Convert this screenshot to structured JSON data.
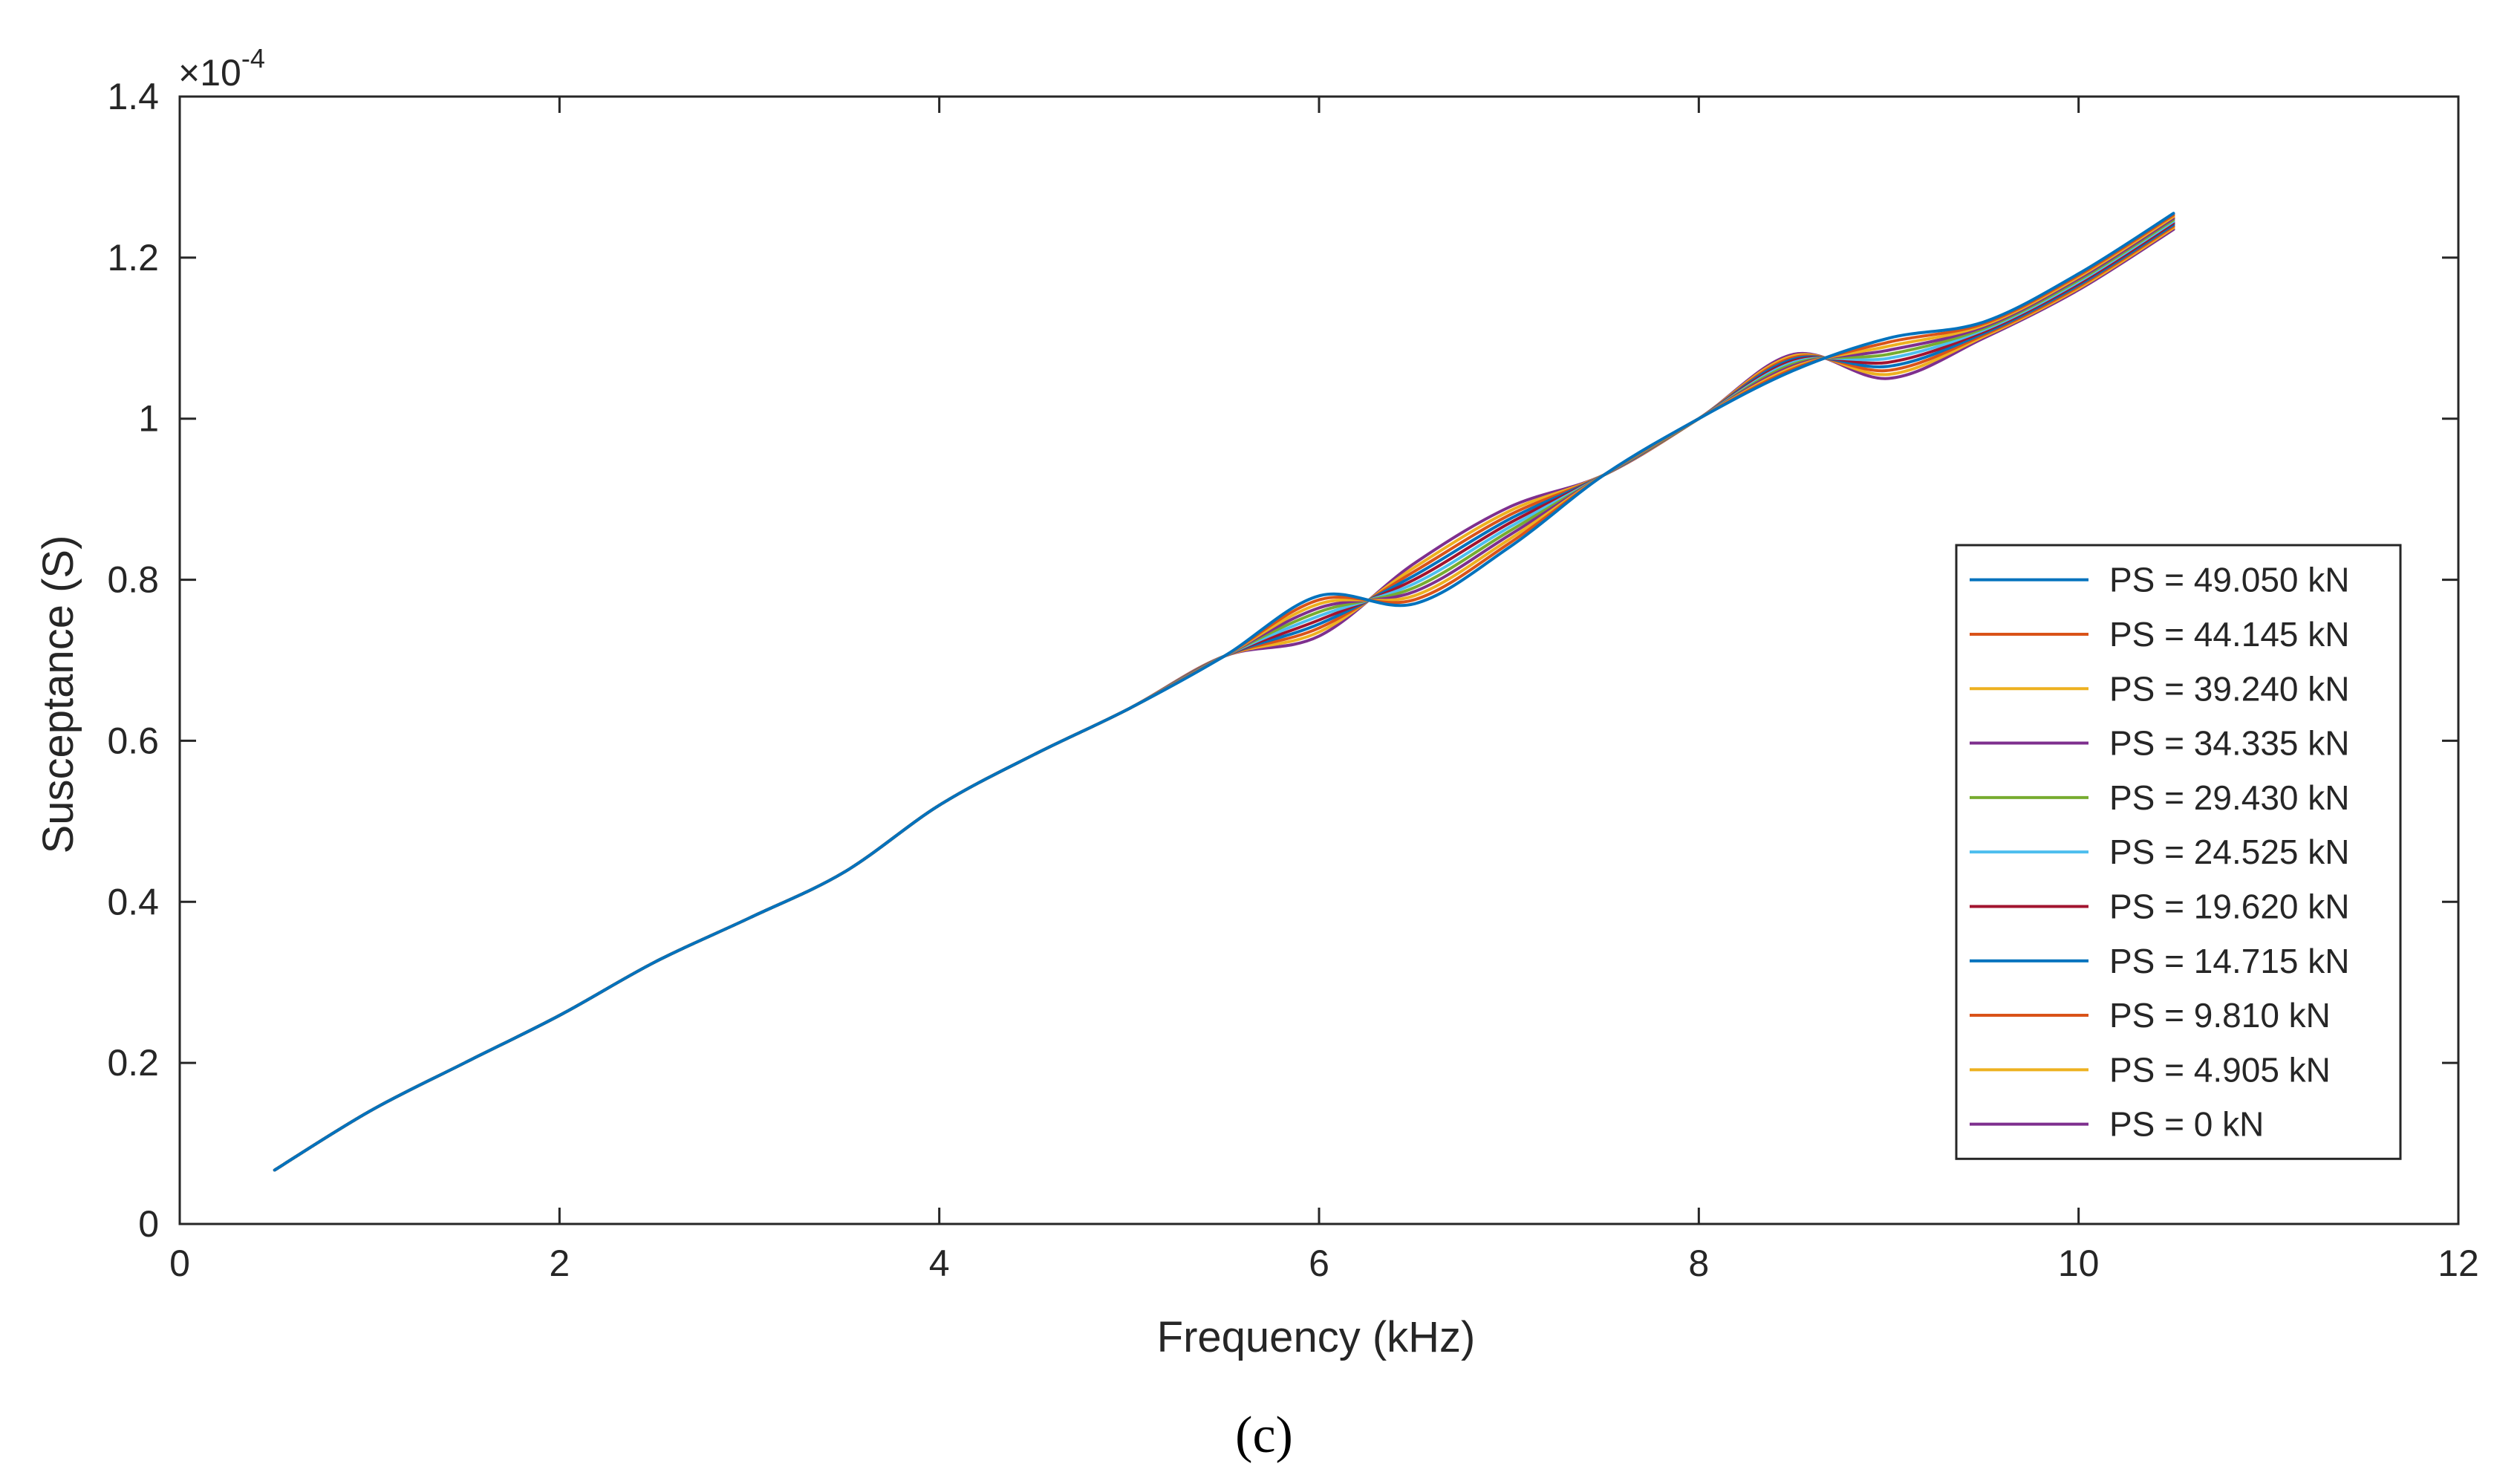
{
  "chart_data": {
    "type": "line",
    "title": "",
    "xlabel": "Frequency (kHz)",
    "ylabel": "Susceptance (S)",
    "y_scale_label": "×10",
    "y_scale_exponent": "-4",
    "panel_label": "(c)",
    "xlim": [
      0,
      12
    ],
    "ylim": [
      0,
      1.4
    ],
    "x_ticks": [
      0,
      2,
      4,
      6,
      8,
      10,
      12
    ],
    "y_ticks": [
      0,
      0.2,
      0.4,
      0.6,
      0.8,
      1,
      1.2,
      1.4
    ],
    "x_tick_labels": [
      "0",
      "2",
      "4",
      "6",
      "8",
      "10",
      "12"
    ],
    "y_tick_labels": [
      "0",
      "0.2",
      "0.4",
      "0.6",
      "0.8",
      "1",
      "1.2",
      "1.4"
    ],
    "grid": false,
    "legend_position": "right",
    "x": [
      0.5,
      1.0,
      1.5,
      2.0,
      2.5,
      3.0,
      3.5,
      4.0,
      4.5,
      5.0,
      5.5,
      6.0,
      6.5,
      7.0,
      7.5,
      8.0,
      8.5,
      9.0,
      9.5,
      10.0,
      10.5
    ],
    "resonances": {
      "description_hidden": "",
      "peak1_x": [
        6.2,
        6.11,
        6.02,
        5.93,
        5.84,
        5.75,
        5.66,
        5.57,
        5.48,
        5.39,
        5.3
      ],
      "peak2_x": [
        9.25,
        9.16,
        9.07,
        8.98,
        8.89,
        8.8,
        8.71,
        8.62,
        8.53,
        8.44,
        8.35
      ]
    },
    "series": [
      {
        "name": "PS = 49.050 kN",
        "color": "#0072BD",
        "values": [
          0.067,
          0.14,
          0.2,
          0.259,
          0.325,
          0.38,
          0.437,
          0.52,
          0.583,
          0.64,
          0.705,
          0.78,
          0.77,
          0.84,
          0.93,
          1.0,
          1.06,
          1.1,
          1.12,
          1.18,
          1.255
        ]
      },
      {
        "name": "PS = 44.145 kN",
        "color": "#D95319",
        "values": [
          0.067,
          0.14,
          0.2,
          0.259,
          0.325,
          0.38,
          0.437,
          0.52,
          0.583,
          0.64,
          0.705,
          0.775,
          0.775,
          0.845,
          0.93,
          1.0,
          1.062,
          1.095,
          1.118,
          1.178,
          1.253
        ]
      },
      {
        "name": "PS = 39.240 kN",
        "color": "#EDB120",
        "values": [
          0.067,
          0.14,
          0.2,
          0.259,
          0.325,
          0.38,
          0.437,
          0.52,
          0.583,
          0.64,
          0.705,
          0.77,
          0.78,
          0.85,
          0.93,
          1.0,
          1.064,
          1.09,
          1.116,
          1.176,
          1.251
        ]
      },
      {
        "name": "PS = 34.335 kN",
        "color": "#7E2F8E",
        "values": [
          0.067,
          0.14,
          0.2,
          0.259,
          0.325,
          0.38,
          0.437,
          0.52,
          0.583,
          0.64,
          0.705,
          0.765,
          0.785,
          0.855,
          0.93,
          1.0,
          1.066,
          1.085,
          1.114,
          1.174,
          1.249
        ]
      },
      {
        "name": "PS = 29.430 kN",
        "color": "#77AC30",
        "values": [
          0.067,
          0.14,
          0.2,
          0.259,
          0.325,
          0.38,
          0.437,
          0.52,
          0.583,
          0.64,
          0.705,
          0.76,
          0.79,
          0.86,
          0.93,
          1.0,
          1.068,
          1.08,
          1.112,
          1.172,
          1.247
        ]
      },
      {
        "name": "PS = 24.525 kN",
        "color": "#4DBEEE",
        "values": [
          0.067,
          0.14,
          0.2,
          0.259,
          0.325,
          0.38,
          0.437,
          0.52,
          0.583,
          0.64,
          0.705,
          0.755,
          0.795,
          0.865,
          0.93,
          1.0,
          1.07,
          1.075,
          1.11,
          1.17,
          1.245
        ]
      },
      {
        "name": "PS = 19.620 kN",
        "color": "#A2142F",
        "values": [
          0.067,
          0.14,
          0.2,
          0.259,
          0.325,
          0.38,
          0.437,
          0.52,
          0.583,
          0.64,
          0.705,
          0.75,
          0.8,
          0.87,
          0.93,
          1.0,
          1.072,
          1.07,
          1.108,
          1.168,
          1.243
        ]
      },
      {
        "name": "PS = 14.715 kN",
        "color": "#0072BD",
        "values": [
          0.067,
          0.14,
          0.2,
          0.259,
          0.325,
          0.38,
          0.437,
          0.52,
          0.583,
          0.64,
          0.705,
          0.745,
          0.805,
          0.875,
          0.93,
          1.0,
          1.074,
          1.065,
          1.106,
          1.166,
          1.241
        ]
      },
      {
        "name": "PS = 9.810 kN",
        "color": "#D95319",
        "values": [
          0.067,
          0.14,
          0.2,
          0.259,
          0.325,
          0.38,
          0.437,
          0.52,
          0.583,
          0.64,
          0.705,
          0.74,
          0.81,
          0.88,
          0.93,
          1.0,
          1.076,
          1.06,
          1.104,
          1.164,
          1.239
        ]
      },
      {
        "name": "PS = 4.905 kN",
        "color": "#EDB120",
        "values": [
          0.067,
          0.14,
          0.2,
          0.259,
          0.325,
          0.38,
          0.437,
          0.52,
          0.583,
          0.64,
          0.705,
          0.735,
          0.815,
          0.885,
          0.93,
          1.0,
          1.078,
          1.055,
          1.102,
          1.162,
          1.237
        ]
      },
      {
        "name": "PS = 0 kN",
        "color": "#7E2F8E",
        "values": [
          0.067,
          0.14,
          0.2,
          0.259,
          0.325,
          0.38,
          0.437,
          0.52,
          0.583,
          0.64,
          0.705,
          0.73,
          0.82,
          0.89,
          0.93,
          1.0,
          1.08,
          1.05,
          1.1,
          1.16,
          1.235
        ]
      }
    ]
  }
}
